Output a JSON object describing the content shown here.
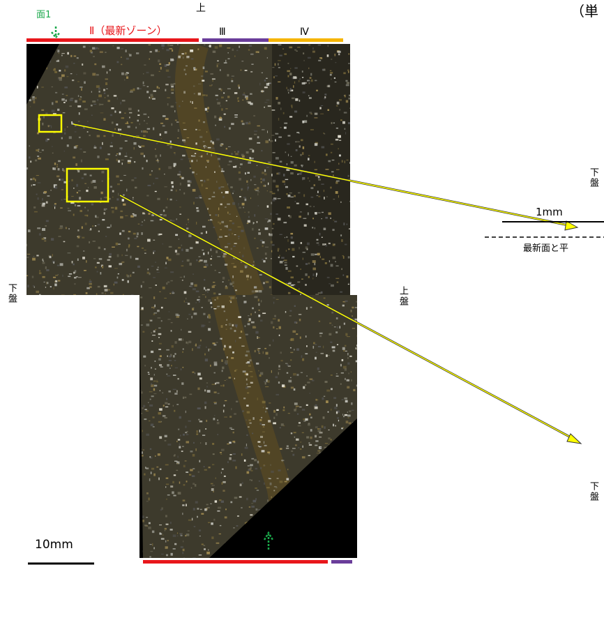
{
  "labels": {
    "face": "面1",
    "zone2": "Ⅱ（最新ゾーン）",
    "zone3": "Ⅲ",
    "zone4": "Ⅳ",
    "top_up": "上",
    "unit": "（単",
    "left_lower": "下盤",
    "mid_upper": "上盤",
    "right_lower_top": "下盤",
    "right_lower_bottom": "下盤",
    "scale_small": "1mm",
    "parallel_note": "最新面と平",
    "scale_large": "10mm"
  }
}
